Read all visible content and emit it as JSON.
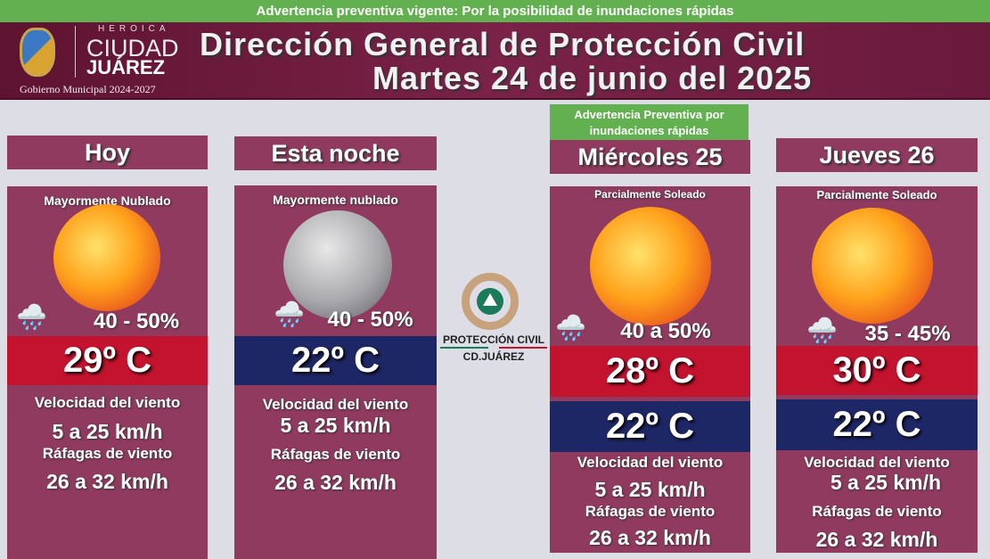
{
  "top_banner": "Advertencia preventiva vigente: Por la posibilidad de inundaciones rápidas",
  "header": {
    "logo": {
      "heroica": "HEROICA",
      "ciudad": "CIUDAD",
      "juarez": "JUÁREZ",
      "gobierno": "Gobierno Municipal 2024-2027"
    },
    "title_line1": "Dirección General de Protección Civil",
    "title_line2": "Martes 24 de junio del 2025"
  },
  "center_logo": {
    "line1": "PROTECCIÓN CIVIL",
    "line2": "CD.JUÁREZ"
  },
  "colors": {
    "card": "#8f3a5e",
    "max_temp_band": "#c4132e",
    "min_temp_band": "#1e2766",
    "warning": "#62b04f"
  },
  "days": [
    {
      "name": "Hoy",
      "condition": "Mayormente Nublado",
      "icon": "sun-icon",
      "rain_chance": "40 - 50%",
      "temp_max": "29º C",
      "wind_label": "Velocidad del viento",
      "wind": "5 a 25 km/h",
      "gust_label": "Ráfagas de viento",
      "gust": "26 a 32 km/h"
    },
    {
      "name": "Esta noche",
      "condition": "Mayormente nublado",
      "icon": "moon-icon",
      "rain_chance": "40 - 50%",
      "temp_min": "22º C",
      "wind_label": "Velocidad del viento",
      "wind": "5 a 25 km/h",
      "gust_label": "Ráfagas de viento",
      "gust": "26 a 32 km/h"
    },
    {
      "name": "Miércoles 25",
      "warning": "Advertencia Preventiva por inundaciones rápidas",
      "condition": "Parcialmente Soleado",
      "icon": "sun-icon",
      "rain_chance": "40 a 50%",
      "temp_max": "28º C",
      "temp_min": "22º C",
      "wind_label": "Velocidad del viento",
      "wind": "5 a 25 km/h",
      "gust_label": "Ráfagas de viento",
      "gust": "26 a 32 km/h"
    },
    {
      "name": "Jueves 26",
      "condition": "Parcialmente Soleado",
      "icon": "sun-icon",
      "rain_chance": "35 - 45%",
      "temp_max": "30º C",
      "temp_min": "22º C",
      "wind_label": "Velocidad del viento",
      "wind": "5 a 25 km/h",
      "gust_label": "Ráfagas de viento",
      "gust": "26 a 32 km/h"
    }
  ]
}
